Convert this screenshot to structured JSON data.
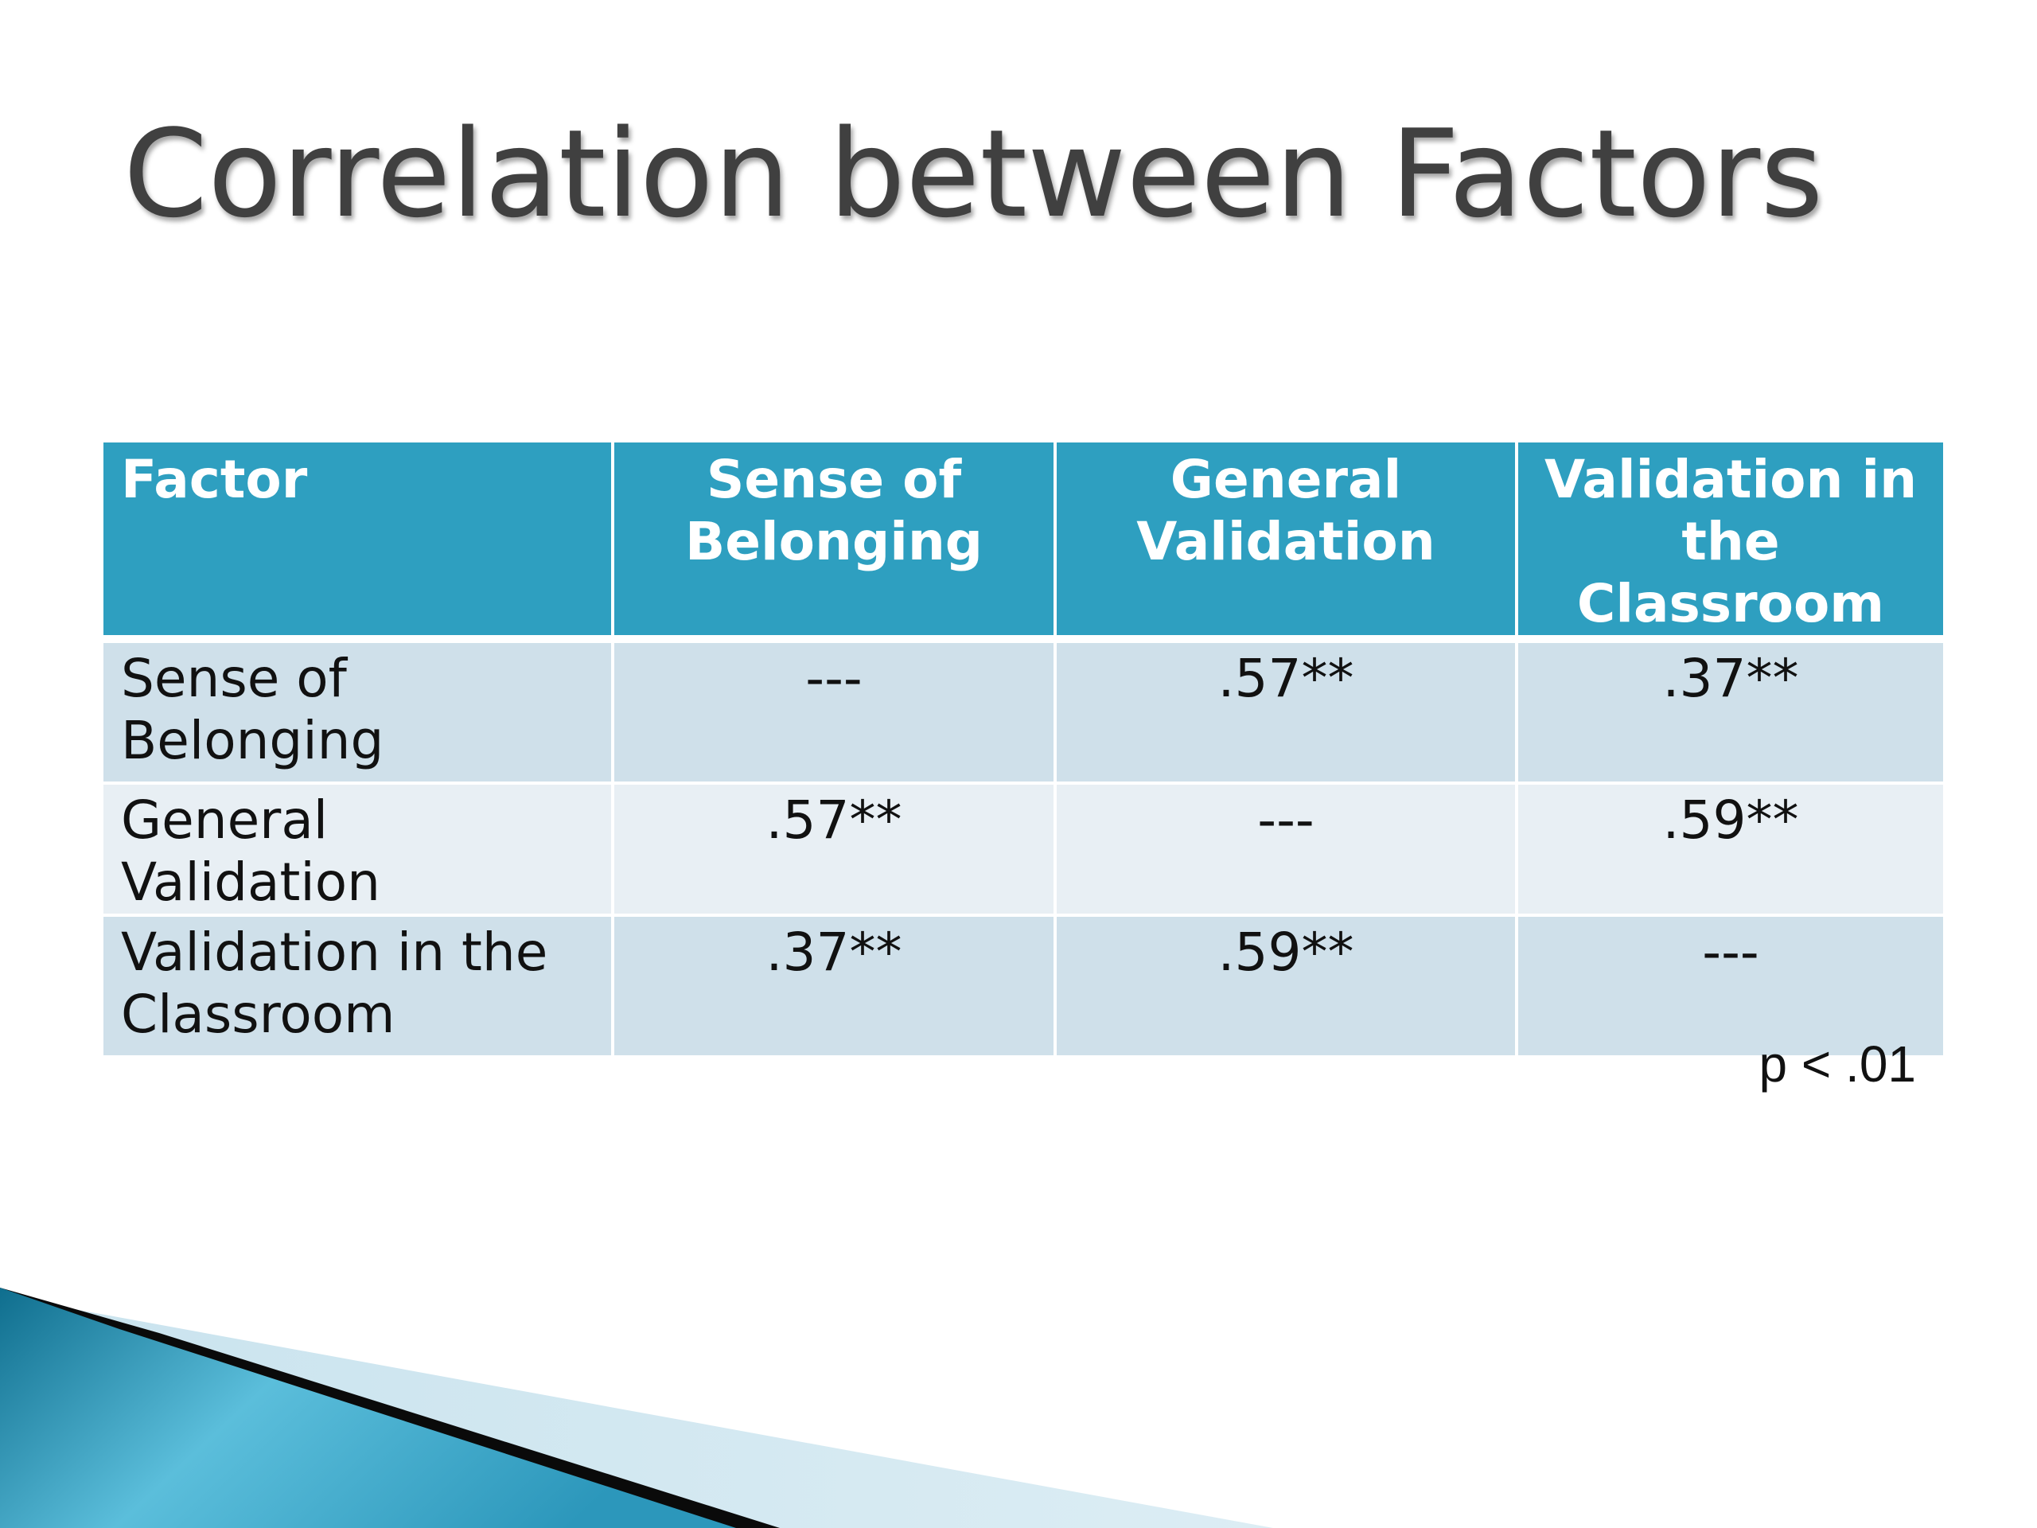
{
  "slide": {
    "title": "Correlation between Factors",
    "footnote": "p < .01"
  },
  "table": {
    "headers": [
      "Factor",
      "Sense of Belonging",
      "General Validation",
      "Validation in the Classroom"
    ],
    "rows": [
      {
        "factor": "Sense of Belonging",
        "cells": [
          "---",
          ".57**",
          ".37**"
        ]
      },
      {
        "factor": "General Validation",
        "cells": [
          ".57**",
          "---",
          ".59**"
        ]
      },
      {
        "factor": "Validation in the Classroom",
        "cells": [
          ".37**",
          ".59**",
          "---"
        ]
      }
    ]
  },
  "colors": {
    "header_bg": "#2e9fc0",
    "row_dark": "#cfe0ea",
    "row_light": "#e8eff4",
    "title_text": "#404040",
    "accent_teal": "#1a7fa3"
  }
}
